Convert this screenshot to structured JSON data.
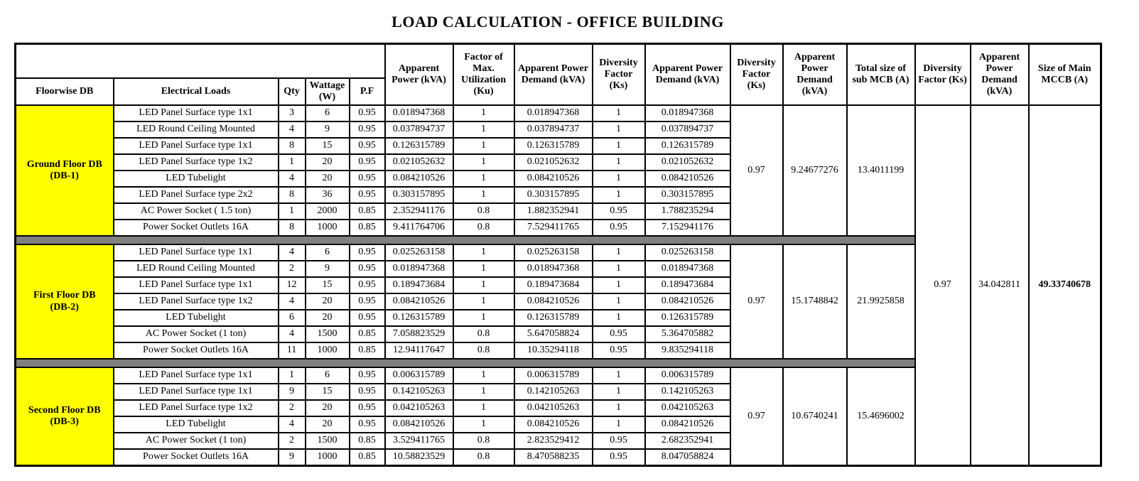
{
  "title": "LOAD CALCULATION - OFFICE BUILDING",
  "colors": {
    "floor_highlight": "#FFFF00",
    "separator_bar": "#808080",
    "border": "#000000"
  },
  "table": {
    "header": {
      "floorwise_db": "Floorwise DB",
      "electrical_loads": "Electrical Loads",
      "qty": "Qty",
      "wattage": "Wattage (W)",
      "pf": "P.F",
      "apparent_power": "Apparent Power (kVA)",
      "factor_max_utilization": "Factor of Max. Utilization (Ku)",
      "apparent_power_demand_1": "Apparent Power Demand (kVA)",
      "diversity_factor_1": "Diversity Factor (Ks)",
      "apparent_power_demand_2": "Apparent Power Demand (kVA)",
      "diversity_factor_2": "Diversity Factor (Ks)",
      "apparent_power_demand_3": "Apparent Power Demand (kVA)",
      "total_sub_mcb": "Total size of sub MCB (A)",
      "diversity_factor_3": "Diversity Factor (Ks)",
      "apparent_power_demand_4": "Apparent Power Demand (kVA)",
      "main_mccb": "Size of Main MCCB (A)"
    },
    "groups": [
      {
        "floor": "Ground Floor DB",
        "db": "(DB-1)",
        "diversity_factor": "0.97",
        "apparent_power_demand": "9.24677276",
        "sub_mcb_size": "13.4011199",
        "rows": [
          [
            "LED Panel Surface type 1x1",
            "3",
            "6",
            "0.95",
            "0.018947368",
            "1",
            "0.018947368",
            "1",
            "0.018947368"
          ],
          [
            "LED Round Ceiling Mounted",
            "4",
            "9",
            "0.95",
            "0.037894737",
            "1",
            "0.037894737",
            "1",
            "0.037894737"
          ],
          [
            "LED Panel Surface type 1x1",
            "8",
            "15",
            "0.95",
            "0.126315789",
            "1",
            "0.126315789",
            "1",
            "0.126315789"
          ],
          [
            "LED Panel Surface type 1x2",
            "1",
            "20",
            "0.95",
            "0.021052632",
            "1",
            "0.021052632",
            "1",
            "0.021052632"
          ],
          [
            "LED Tubelight",
            "4",
            "20",
            "0.95",
            "0.084210526",
            "1",
            "0.084210526",
            "1",
            "0.084210526"
          ],
          [
            "LED Panel Surface type 2x2",
            "8",
            "36",
            "0.95",
            "0.303157895",
            "1",
            "0.303157895",
            "1",
            "0.303157895"
          ],
          [
            "AC Power Socket ( 1.5 ton)",
            "1",
            "2000",
            "0.85",
            "2.352941176",
            "0.8",
            "1.882352941",
            "0.95",
            "1.788235294"
          ],
          [
            "Power Socket Outlets 16A",
            "8",
            "1000",
            "0.85",
            "9.411764706",
            "0.8",
            "7.529411765",
            "0.95",
            "7.152941176"
          ]
        ]
      },
      {
        "floor": "First Floor DB",
        "db": "(DB-2)",
        "diversity_factor": "0.97",
        "apparent_power_demand": "15.1748842",
        "sub_mcb_size": "21.9925858",
        "rows": [
          [
            "LED Panel Surface type 1x1",
            "4",
            "6",
            "0.95",
            "0.025263158",
            "1",
            "0.025263158",
            "1",
            "0.025263158"
          ],
          [
            "LED Round Ceiling Mounted",
            "2",
            "9",
            "0.95",
            "0.018947368",
            "1",
            "0.018947368",
            "1",
            "0.018947368"
          ],
          [
            "LED Panel Surface type 1x1",
            "12",
            "15",
            "0.95",
            "0.189473684",
            "1",
            "0.189473684",
            "1",
            "0.189473684"
          ],
          [
            "LED Panel Surface type 1x2",
            "4",
            "20",
            "0.95",
            "0.084210526",
            "1",
            "0.084210526",
            "1",
            "0.084210526"
          ],
          [
            "LED Tubelight",
            "6",
            "20",
            "0.95",
            "0.126315789",
            "1",
            "0.126315789",
            "1",
            "0.126315789"
          ],
          [
            "AC Power Socket (1 ton)",
            "4",
            "1500",
            "0.85",
            "7.058823529",
            "0.8",
            "5.647058824",
            "0.95",
            "5.364705882"
          ],
          [
            "Power Socket Outlets 16A",
            "11",
            "1000",
            "0.85",
            "12.94117647",
            "0.8",
            "10.35294118",
            "0.95",
            "9.835294118"
          ]
        ]
      },
      {
        "floor": "Second Floor DB",
        "db": "(DB-3)",
        "diversity_factor": "0.97",
        "apparent_power_demand": "10.6740241",
        "sub_mcb_size": "15.4696002",
        "rows": [
          [
            "LED Panel Surface type 1x1",
            "1",
            "6",
            "0.95",
            "0.006315789",
            "1",
            "0.006315789",
            "1",
            "0.006315789"
          ],
          [
            "LED Panel Surface type 1x1",
            "9",
            "15",
            "0.95",
            "0.142105263",
            "1",
            "0.142105263",
            "1",
            "0.142105263"
          ],
          [
            "LED Panel Surface type 1x2",
            "2",
            "20",
            "0.95",
            "0.042105263",
            "1",
            "0.042105263",
            "1",
            "0.042105263"
          ],
          [
            "LED Tubelight",
            "4",
            "20",
            "0.95",
            "0.084210526",
            "1",
            "0.084210526",
            "1",
            "0.084210526"
          ],
          [
            "AC Power Socket (1 ton)",
            "2",
            "1500",
            "0.85",
            "3.529411765",
            "0.8",
            "2.823529412",
            "0.95",
            "2.682352941"
          ],
          [
            "Power Socket Outlets 16A",
            "9",
            "1000",
            "0.85",
            "10.58823529",
            "0.8",
            "8.470588235",
            "0.95",
            "8.047058824"
          ]
        ]
      }
    ],
    "overall": {
      "diversity_factor": "0.97",
      "apparent_power_demand": "34.042811",
      "main_mccb_size": "49.33740678"
    }
  }
}
